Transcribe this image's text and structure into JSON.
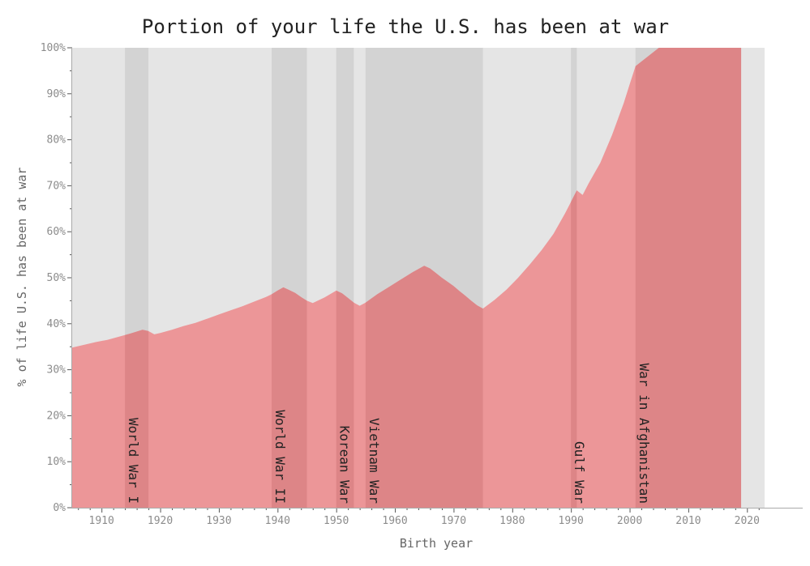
{
  "chart_data": {
    "type": "area",
    "title": "Portion of your life the U.S. has been at war",
    "xlabel": "Birth year",
    "ylabel": "% of life U.S. has been at war",
    "xlim": [
      1905,
      2023
    ],
    "ylim": [
      0,
      100
    ],
    "x_ticks": [
      1910,
      1920,
      1930,
      1940,
      1950,
      1960,
      1970,
      1980,
      1990,
      2000,
      2010,
      2020
    ],
    "y_ticks": [
      "0%",
      "10%",
      "20%",
      "30%",
      "40%",
      "50%",
      "60%",
      "70%",
      "80%",
      "90%",
      "100%"
    ],
    "colors": {
      "background": "#e5e5e5",
      "war_band": "#d3d3d3",
      "area": "#ec9698",
      "area_in_war": "#dd8587",
      "tick_label": "#8c8c8c"
    },
    "wars": [
      {
        "name": "World War I",
        "start": 1914,
        "end": 1918
      },
      {
        "name": "World War II",
        "start": 1939,
        "end": 1945
      },
      {
        "name": "Korean War",
        "start": 1950,
        "end": 1953
      },
      {
        "name": "Vietnam War",
        "start": 1955,
        "end": 1975
      },
      {
        "name": "Gulf War",
        "start": 1990,
        "end": 1991
      },
      {
        "name": "War in Afghanistan",
        "start": 2001,
        "end": 2019
      }
    ],
    "series": [
      {
        "x": [
          1905,
          1907,
          1909,
          1911,
          1913,
          1915,
          1917,
          1918,
          1919,
          1920,
          1922,
          1924,
          1926,
          1928,
          1930,
          1932,
          1934,
          1936,
          1938,
          1939,
          1940,
          1941,
          1942,
          1943,
          1944,
          1945,
          1946,
          1948,
          1950,
          1951,
          1952,
          1953,
          1954,
          1955,
          1957,
          1959,
          1961,
          1963,
          1965,
          1966,
          1967,
          1968,
          1969,
          1970,
          1971,
          1972,
          1973,
          1974,
          1975,
          1977,
          1979,
          1981,
          1983,
          1985,
          1987,
          1989,
          1990,
          1991,
          1992,
          1993,
          1995,
          1997,
          1999,
          2000,
          2001,
          2005,
          2010,
          2015,
          2019
        ],
        "values": [
          34.8,
          35.4,
          36.0,
          36.5,
          37.2,
          37.9,
          38.7,
          38.4,
          37.7,
          38.0,
          38.7,
          39.5,
          40.2,
          41.1,
          42.0,
          42.9,
          43.8,
          44.8,
          45.8,
          46.4,
          47.2,
          47.9,
          47.3,
          46.7,
          45.8,
          45.0,
          44.5,
          45.7,
          47.2,
          46.6,
          45.6,
          44.6,
          43.9,
          44.6,
          46.4,
          48.0,
          49.6,
          51.2,
          52.6,
          52.0,
          51.0,
          50.0,
          49.1,
          48.2,
          47.1,
          46.1,
          45.0,
          44.0,
          43.3,
          45.2,
          47.4,
          50.0,
          52.9,
          56.0,
          59.5,
          64.0,
          66.5,
          69.0,
          68.0,
          70.5,
          75.0,
          81.0,
          88.0,
          92.0,
          96.0,
          100,
          100,
          100,
          100
        ]
      }
    ]
  }
}
